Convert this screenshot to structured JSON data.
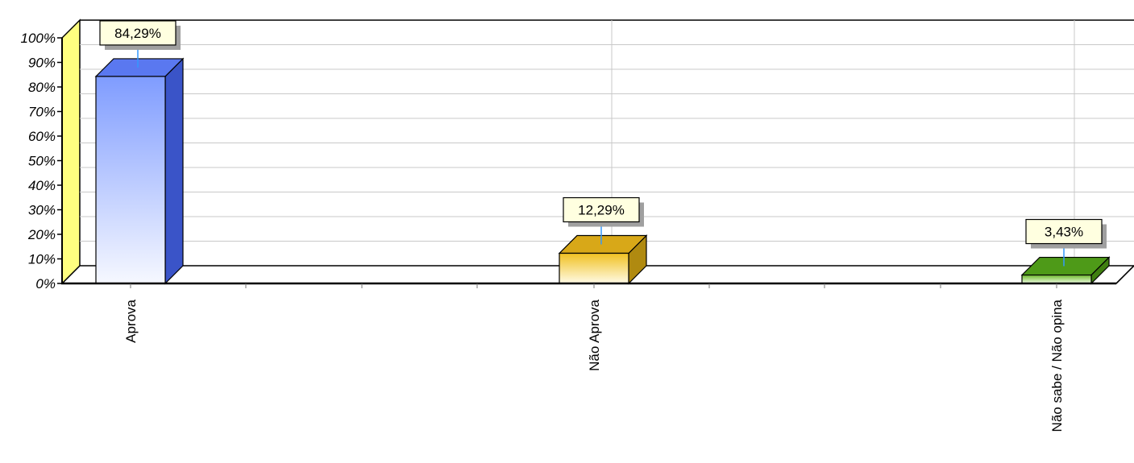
{
  "chart_data": {
    "type": "bar",
    "title": "",
    "xlabel": "",
    "ylabel": "",
    "categories": [
      "Aprova",
      "Não Aprova",
      "Não sabe / Não opina"
    ],
    "values": [
      84.29,
      12.29,
      3.43
    ],
    "value_labels": [
      "84,29%",
      "12,29%",
      "3,43%"
    ],
    "ylim": [
      0,
      100
    ],
    "yticks": [
      "0%",
      "10%",
      "20%",
      "30%",
      "40%",
      "50%",
      "60%",
      "70%",
      "80%",
      "90%",
      "100%"
    ],
    "grid": true,
    "three_d": true,
    "legend": "none",
    "colors": {
      "bars": [
        "#7f9cff",
        "#f0c020",
        "#6cb82c"
      ],
      "bar_light": [
        "#f6f8ff",
        "#fffbe6",
        "#f2ffe6"
      ],
      "bar_side": [
        "#3a54c8",
        "#b08a10",
        "#3f7f10"
      ],
      "bar_top": [
        "#5a78f0",
        "#d8a818",
        "#4e9a18"
      ],
      "wall_left": "#ffff80",
      "label_bg": "#ffffe0",
      "connector": "#3399ff"
    }
  }
}
